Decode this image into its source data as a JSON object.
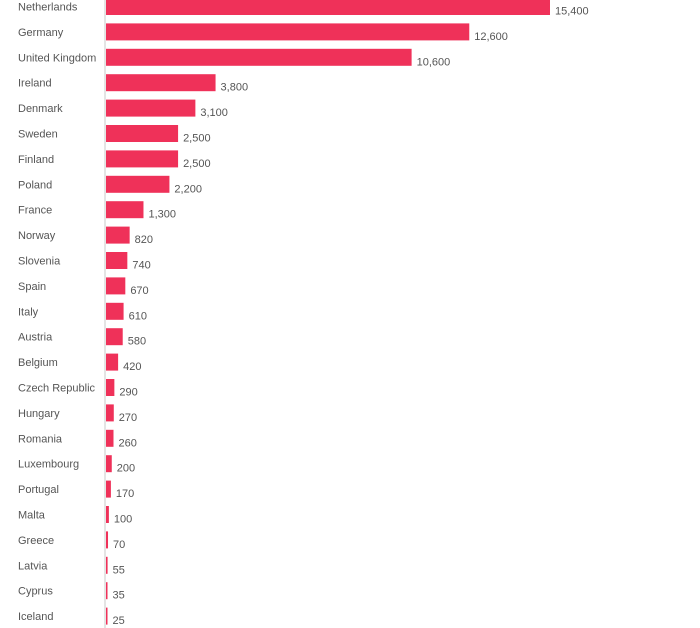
{
  "chart_data": {
    "type": "bar",
    "orientation": "horizontal",
    "categories": [
      "Netherlands",
      "Germany",
      "United Kingdom",
      "Ireland",
      "Denmark",
      "Sweden",
      "Finland",
      "Poland",
      "France",
      "Norway",
      "Slovenia",
      "Spain",
      "Italy",
      "Austria",
      "Belgium",
      "Czech Republic",
      "Hungary",
      "Romania",
      "Luxembourg",
      "Portugal",
      "Malta",
      "Greece",
      "Latvia",
      "Cyprus",
      "Iceland"
    ],
    "values": [
      15400,
      12600,
      10600,
      3800,
      3100,
      2500,
      2500,
      2200,
      1300,
      820,
      740,
      670,
      610,
      580,
      420,
      290,
      270,
      260,
      200,
      170,
      100,
      70,
      55,
      35,
      25
    ],
    "value_labels": [
      "15,400",
      "12,600",
      "10,600",
      "3,800",
      "3,100",
      "2,500",
      "2,500",
      "2,200",
      "1,300",
      "820",
      "740",
      "670",
      "610",
      "580",
      "420",
      "290",
      "270",
      "260",
      "200",
      "170",
      "100",
      "70",
      "55",
      "35",
      "25"
    ],
    "bar_color": "#ef3159",
    "xlim": [
      0,
      15400
    ],
    "grid": false,
    "legend": "none"
  }
}
